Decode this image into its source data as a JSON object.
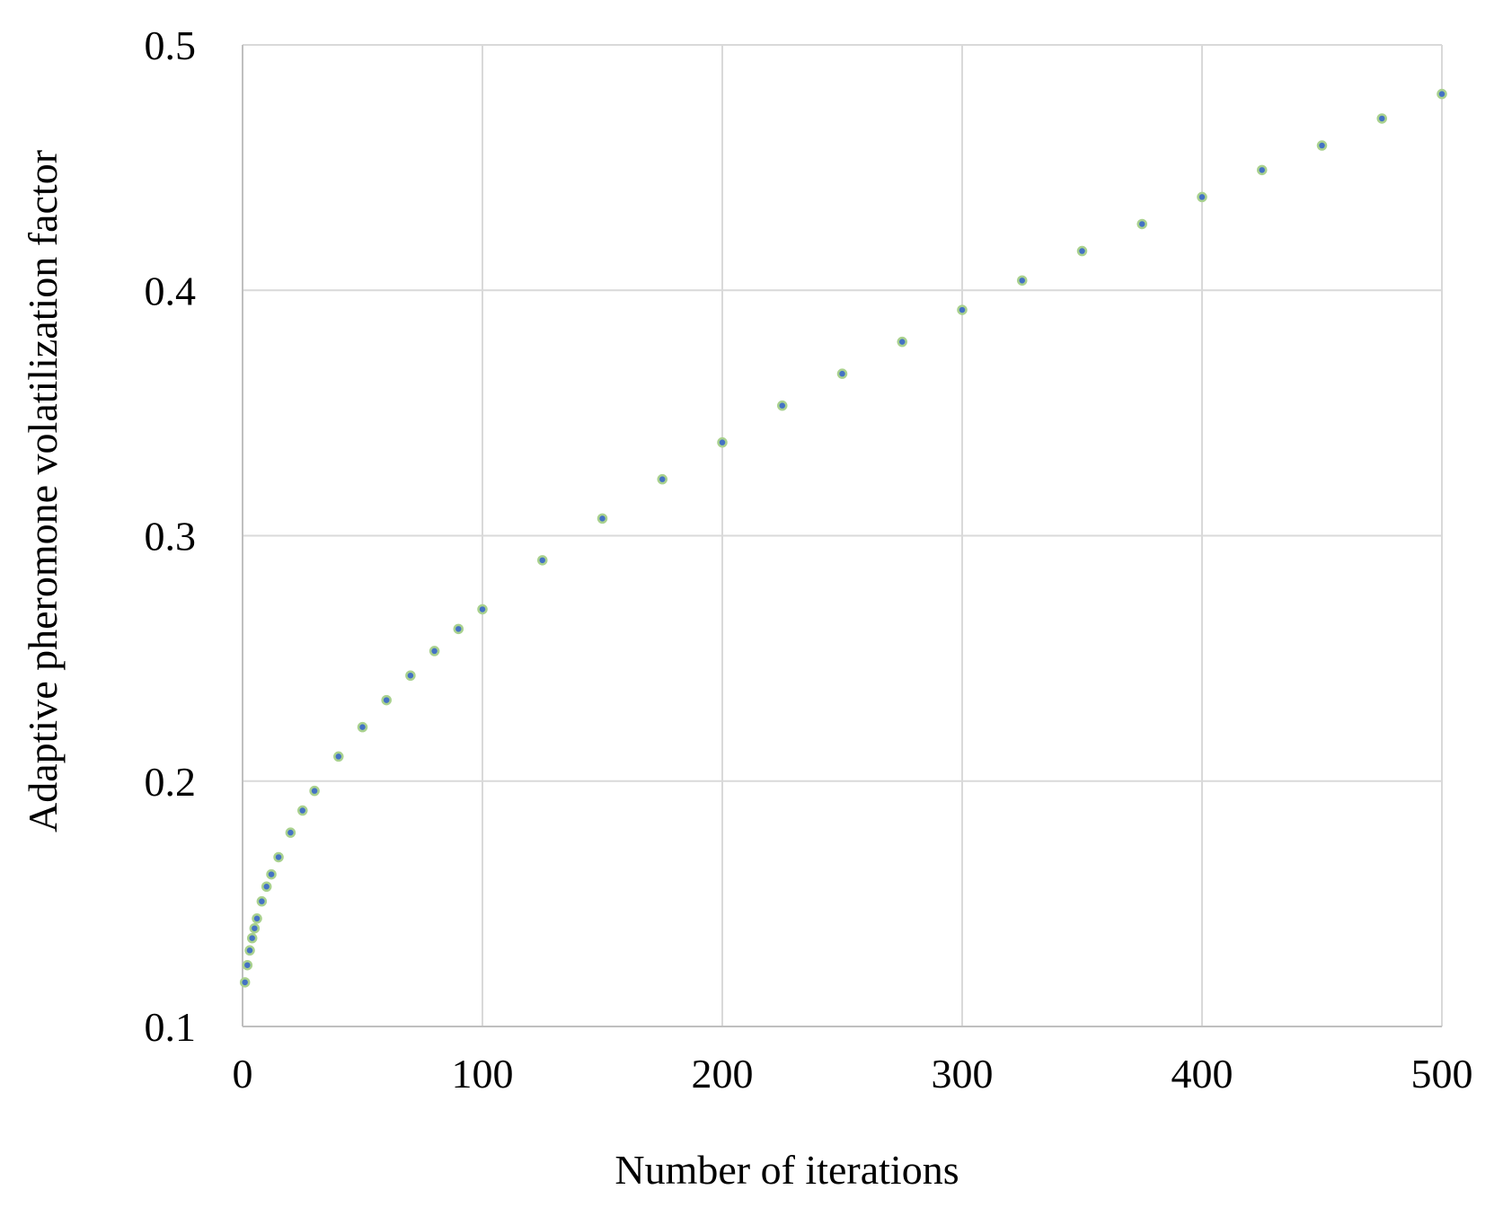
{
  "chart_data": {
    "type": "scatter",
    "title": "",
    "xlabel": "Number of iterations",
    "ylabel": "Adaptive pheromone volatilization factor",
    "xlim": [
      0,
      500
    ],
    "ylim": [
      0.1,
      0.5
    ],
    "x_ticks": [
      "0",
      "100",
      "200",
      "300",
      "400",
      "500"
    ],
    "y_ticks": [
      "0.1",
      "0.2",
      "0.3",
      "0.4",
      "0.5"
    ],
    "grid": true,
    "legend": "none",
    "marker_fill_color": "#4472c4",
    "marker_edge_color": "#a9d18e",
    "series": [
      {
        "x": [
          1,
          2,
          3,
          4,
          5,
          6,
          8,
          10,
          12,
          15,
          20,
          25,
          30,
          40,
          50,
          60,
          70,
          80,
          90,
          100,
          125,
          150,
          175,
          200,
          225,
          250,
          275,
          300,
          325,
          350,
          375,
          400,
          425,
          450,
          475,
          500
        ],
        "values": [
          0.118,
          0.125,
          0.131,
          0.136,
          0.14,
          0.144,
          0.151,
          0.157,
          0.162,
          0.169,
          0.179,
          0.188,
          0.196,
          0.21,
          0.222,
          0.233,
          0.243,
          0.253,
          0.262,
          0.27,
          0.29,
          0.307,
          0.323,
          0.338,
          0.353,
          0.366,
          0.379,
          0.392,
          0.404,
          0.416,
          0.427,
          0.438,
          0.449,
          0.459,
          0.47,
          0.48
        ]
      }
    ]
  }
}
